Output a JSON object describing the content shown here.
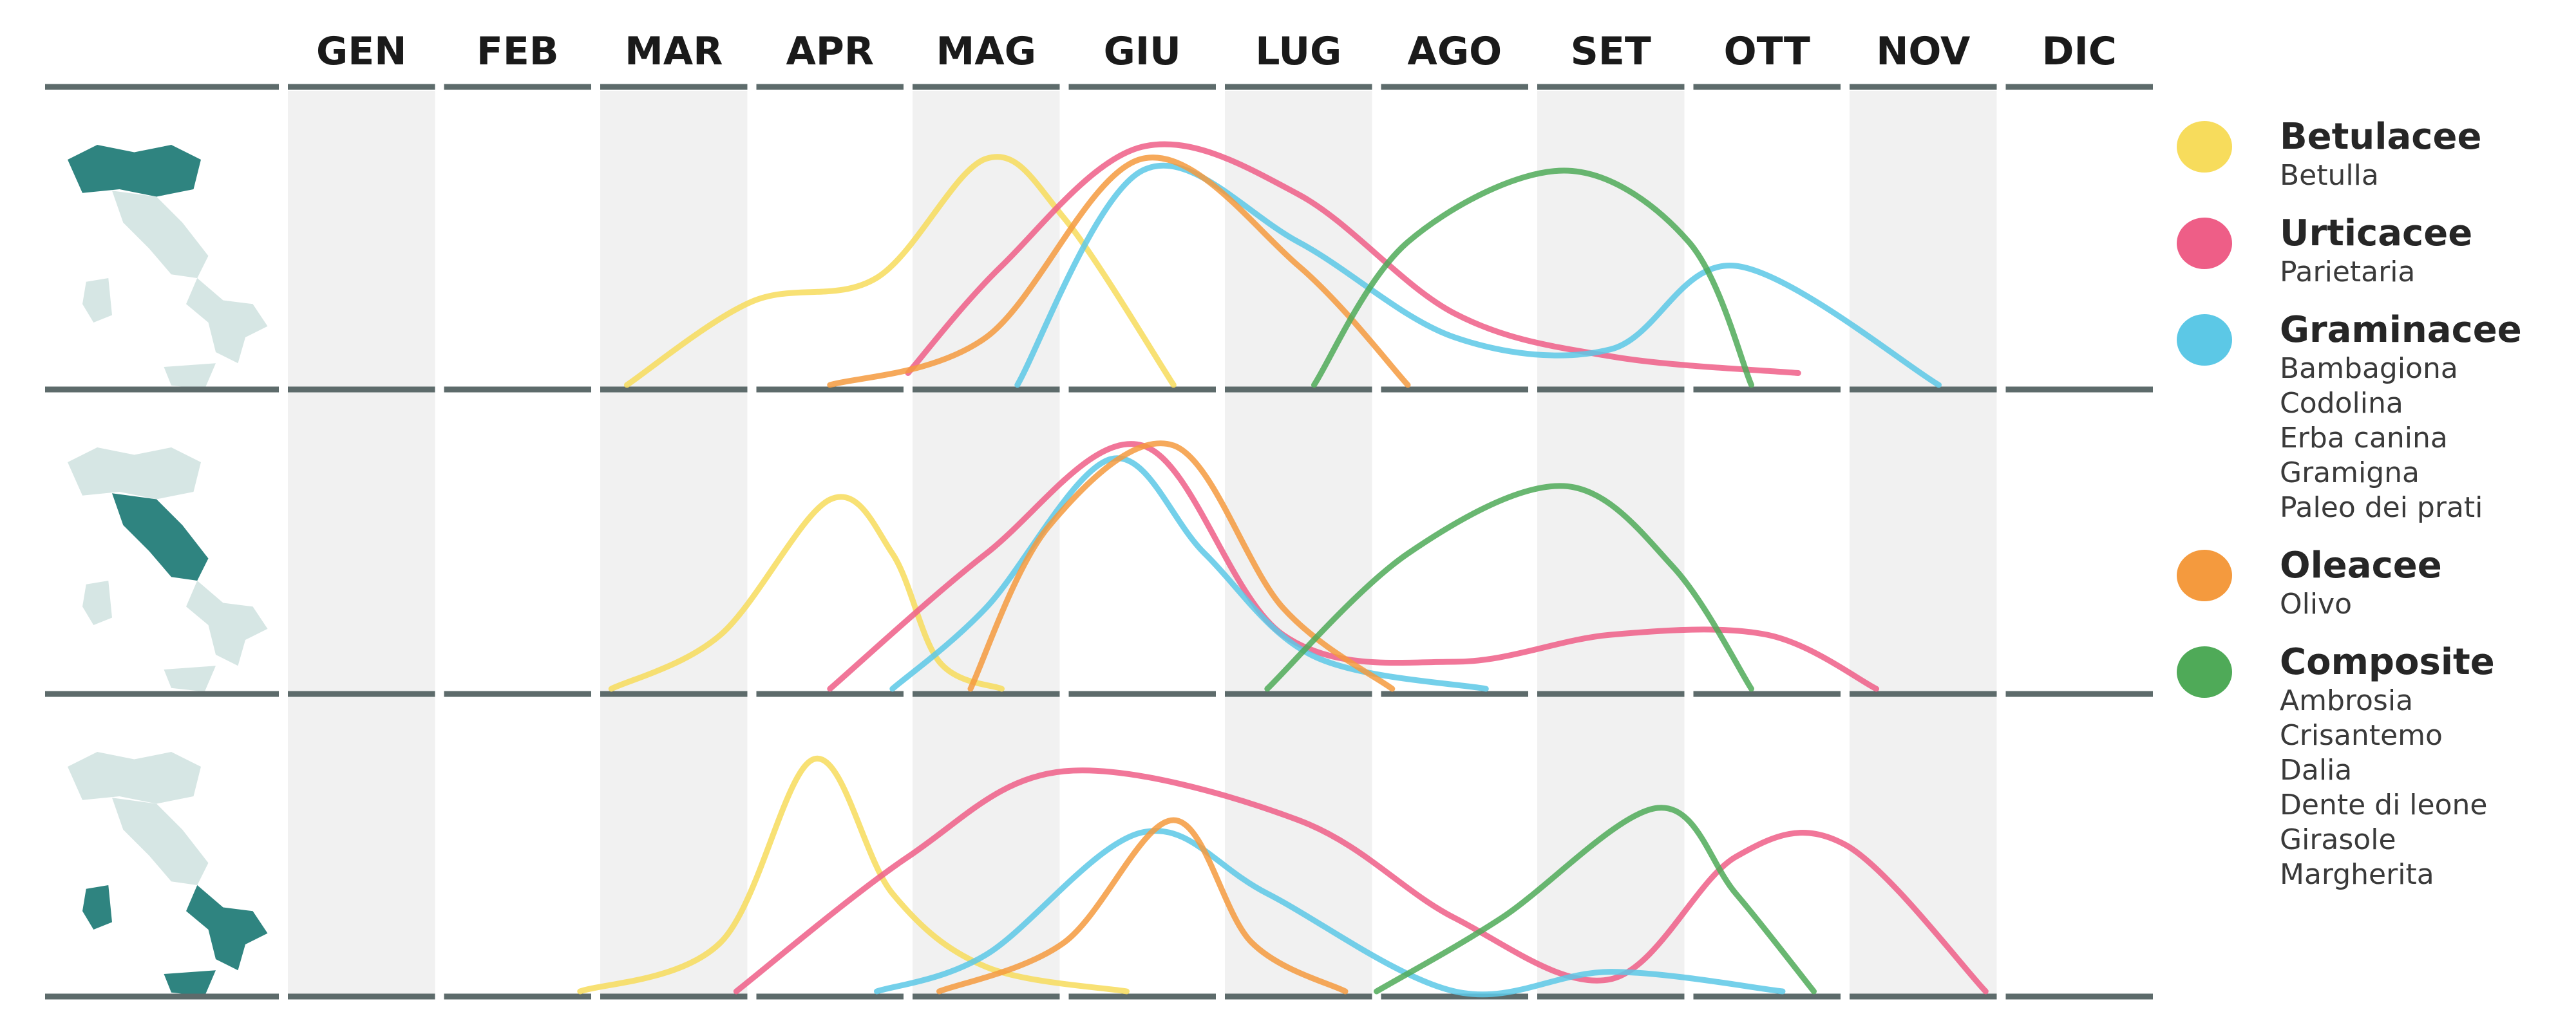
{
  "chart_data": {
    "type": "line",
    "x_unit": "month",
    "months": [
      "GEN",
      "FEB",
      "MAR",
      "APR",
      "MAG",
      "GIU",
      "LUG",
      "AGO",
      "SET",
      "OTT",
      "NOV",
      "DIC"
    ],
    "grid": "alternating shaded month columns",
    "legend_position": "right",
    "families": [
      {
        "id": "betulacee",
        "title": "Betulacee",
        "color": "#f7dc5c",
        "items": [
          "Betulla"
        ]
      },
      {
        "id": "urticacee",
        "title": "Urticacee",
        "color": "#ee5e87",
        "items": [
          "Parietaria"
        ]
      },
      {
        "id": "graminacee",
        "title": "Graminacee",
        "color": "#5cc8e6",
        "items": [
          "Bambagiona",
          "Codolina",
          "Erba canina",
          "Gramigna",
          "Paleo dei prati"
        ]
      },
      {
        "id": "oleacee",
        "title": "Oleacee",
        "color": "#f49a3e",
        "items": [
          "Olivo"
        ]
      },
      {
        "id": "composite",
        "title": "Composite",
        "color": "#4faa58",
        "items": [
          "Ambrosia",
          "Crisantemo",
          "Dalia",
          "Dente di leone",
          "Girasole",
          "Margherita"
        ]
      }
    ],
    "regions": [
      {
        "highlight": "north",
        "series": [
          {
            "family": "betulacee",
            "points": [
              [
                2.2,
                0
              ],
              [
                3.0,
                0.35
              ],
              [
                3.8,
                0.45
              ],
              [
                4.5,
                0.95
              ],
              [
                5.0,
                0.7
              ],
              [
                5.7,
                0
              ]
            ]
          },
          {
            "family": "urticacee",
            "points": [
              [
                4.0,
                0.05
              ],
              [
                4.6,
                0.5
              ],
              [
                5.5,
                1.0
              ],
              [
                6.5,
                0.8
              ],
              [
                7.5,
                0.3
              ],
              [
                8.5,
                0.12
              ],
              [
                9.7,
                0.05
              ]
            ]
          },
          {
            "family": "graminacee",
            "points": [
              [
                4.7,
                0
              ],
              [
                5.5,
                0.9
              ],
              [
                6.5,
                0.6
              ],
              [
                7.5,
                0.2
              ],
              [
                8.5,
                0.15
              ],
              [
                9.3,
                0.5
              ],
              [
                10.6,
                0
              ]
            ]
          },
          {
            "family": "oleacee",
            "points": [
              [
                3.5,
                0
              ],
              [
                4.5,
                0.2
              ],
              [
                5.5,
                0.95
              ],
              [
                6.5,
                0.5
              ],
              [
                7.2,
                0
              ]
            ]
          },
          {
            "family": "composite",
            "points": [
              [
                6.6,
                0
              ],
              [
                7.2,
                0.6
              ],
              [
                8.2,
                0.9
              ],
              [
                9.0,
                0.6
              ],
              [
                9.4,
                0
              ]
            ]
          }
        ]
      },
      {
        "highlight": "center",
        "series": [
          {
            "family": "betulacee",
            "points": [
              [
                2.1,
                0
              ],
              [
                2.8,
                0.2
              ],
              [
                3.5,
                0.7
              ],
              [
                3.9,
                0.5
              ],
              [
                4.2,
                0.1
              ],
              [
                4.6,
                0
              ]
            ]
          },
          {
            "family": "urticacee",
            "points": [
              [
                3.5,
                0
              ],
              [
                4.5,
                0.5
              ],
              [
                5.5,
                0.9
              ],
              [
                6.4,
                0.2
              ],
              [
                7.5,
                0.1
              ],
              [
                8.5,
                0.2
              ],
              [
                9.5,
                0.2
              ],
              [
                10.2,
                0
              ]
            ]
          },
          {
            "family": "graminacee",
            "points": [
              [
                3.9,
                0
              ],
              [
                4.5,
                0.3
              ],
              [
                5.3,
                0.85
              ],
              [
                5.9,
                0.5
              ],
              [
                6.6,
                0.12
              ],
              [
                7.7,
                0
              ]
            ]
          },
          {
            "family": "oleacee",
            "points": [
              [
                4.4,
                0
              ],
              [
                4.9,
                0.6
              ],
              [
                5.7,
                0.9
              ],
              [
                6.4,
                0.3
              ],
              [
                7.1,
                0
              ]
            ]
          },
          {
            "family": "composite",
            "points": [
              [
                6.3,
                0
              ],
              [
                7.2,
                0.5
              ],
              [
                8.2,
                0.75
              ],
              [
                8.9,
                0.45
              ],
              [
                9.4,
                0
              ]
            ]
          }
        ]
      },
      {
        "highlight": "south",
        "series": [
          {
            "family": "betulacee",
            "points": [
              [
                1.9,
                0
              ],
              [
                2.8,
                0.2
              ],
              [
                3.4,
                0.95
              ],
              [
                3.9,
                0.4
              ],
              [
                4.5,
                0.1
              ],
              [
                5.4,
                0
              ]
            ]
          },
          {
            "family": "urticacee",
            "points": [
              [
                2.9,
                0
              ],
              [
                4.0,
                0.55
              ],
              [
                5.0,
                0.9
              ],
              [
                6.5,
                0.7
              ],
              [
                7.5,
                0.3
              ],
              [
                8.5,
                0.05
              ],
              [
                9.3,
                0.55
              ],
              [
                10.0,
                0.6
              ],
              [
                10.9,
                0
              ]
            ]
          },
          {
            "family": "graminacee",
            "points": [
              [
                3.8,
                0
              ],
              [
                4.5,
                0.15
              ],
              [
                5.5,
                0.65
              ],
              [
                6.3,
                0.4
              ],
              [
                7.5,
                0
              ],
              [
                8.5,
                0.08
              ],
              [
                9.6,
                0
              ]
            ]
          },
          {
            "family": "oleacee",
            "points": [
              [
                4.2,
                0
              ],
              [
                5.0,
                0.2
              ],
              [
                5.7,
                0.7
              ],
              [
                6.2,
                0.2
              ],
              [
                6.8,
                0
              ]
            ]
          },
          {
            "family": "composite",
            "points": [
              [
                7.0,
                0
              ],
              [
                7.8,
                0.3
              ],
              [
                8.8,
                0.75
              ],
              [
                9.3,
                0.4
              ],
              [
                9.8,
                0
              ]
            ]
          }
        ]
      }
    ]
  }
}
